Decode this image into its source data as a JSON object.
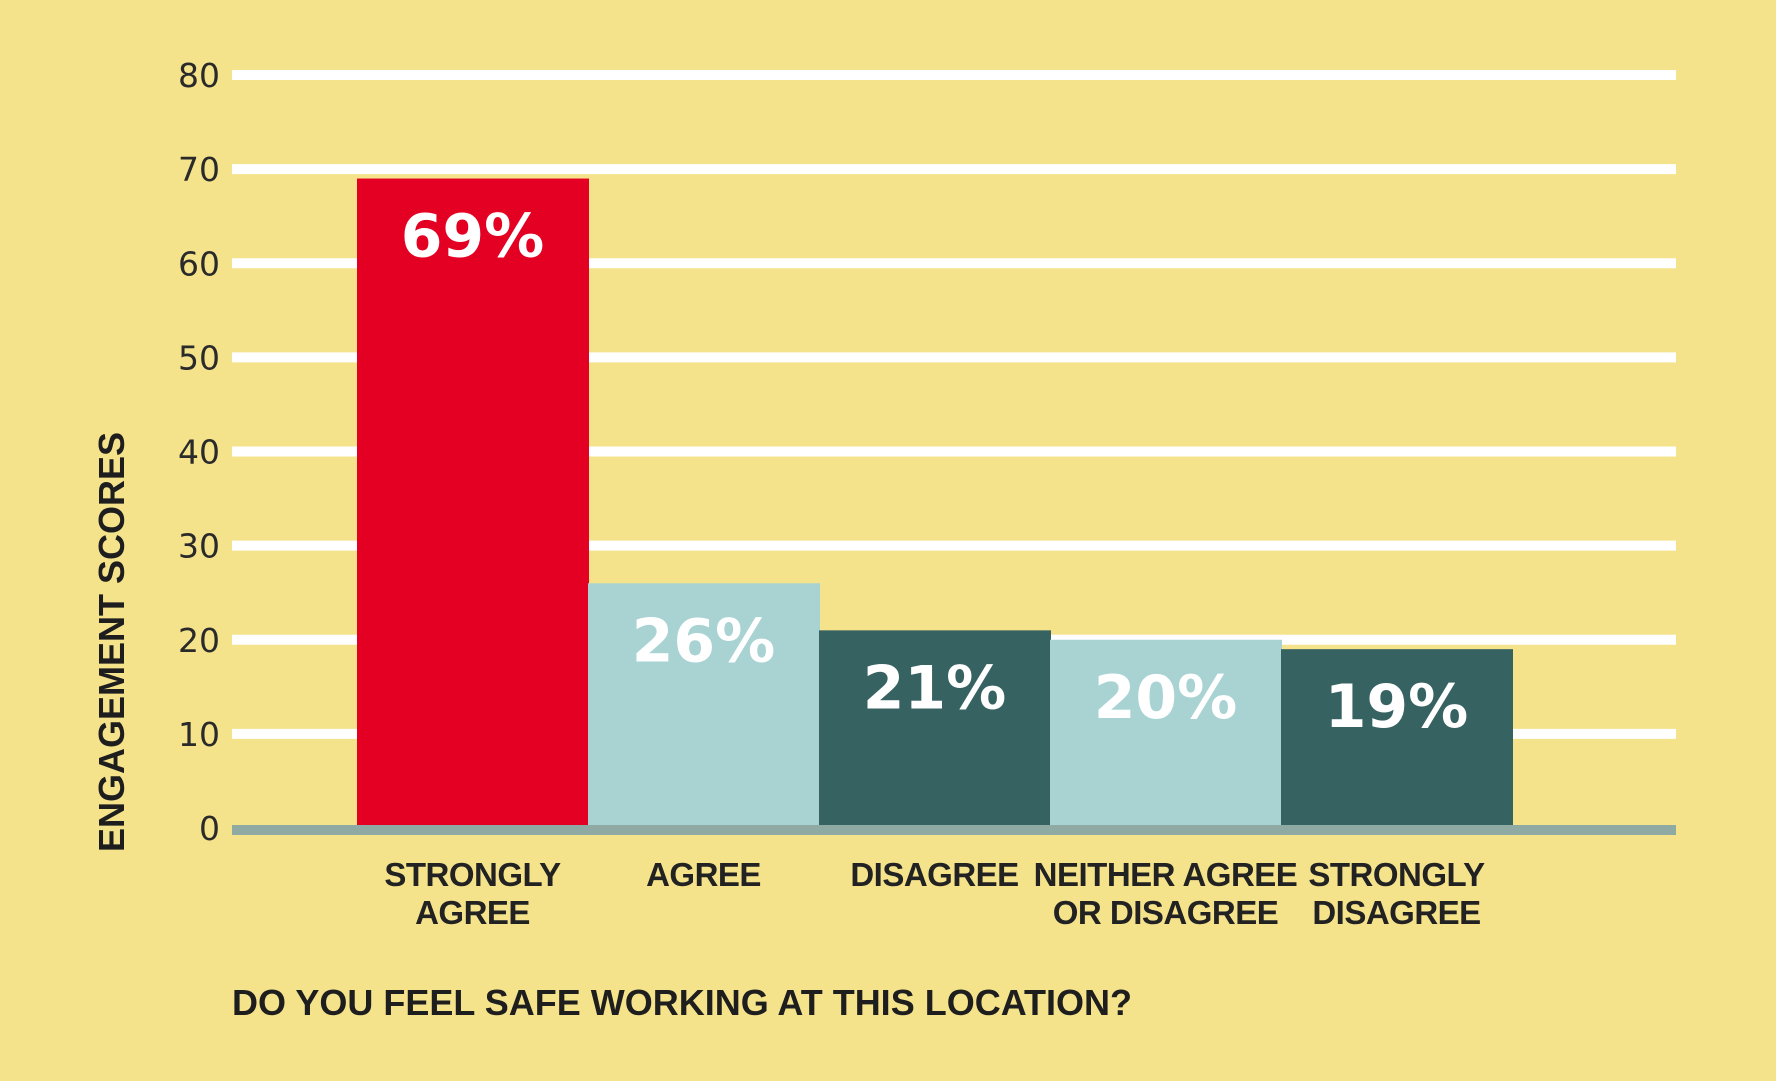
{
  "chart_data": {
    "type": "bar",
    "categories": [
      [
        "STRONGLY",
        "AGREE"
      ],
      [
        "AGREE"
      ],
      [
        "DISAGREE"
      ],
      [
        "NEITHER AGREE",
        "OR DISAGREE"
      ],
      [
        "STRONGLY",
        "DISAGREE"
      ]
    ],
    "values": [
      69,
      26,
      21,
      20,
      19
    ],
    "value_labels": [
      "69%",
      "26%",
      "21%",
      "20%",
      "19%"
    ],
    "bar_colors": [
      "#e30022",
      "#a9d3d3",
      "#376262",
      "#a9d3d3",
      "#376262"
    ],
    "xlabel": "DO YOU FEEL SAFE WORKING AT THIS LOCATION?",
    "ylabel": "ENGAGEMENT SCORES",
    "ylim": [
      0,
      80
    ],
    "yticks": [
      0,
      10,
      20,
      30,
      40,
      50,
      60,
      70,
      80
    ],
    "grid": true,
    "colors": {
      "background": "#f5e38c",
      "gridline": "#ffffff",
      "baseline": "#8fa9a3"
    }
  }
}
